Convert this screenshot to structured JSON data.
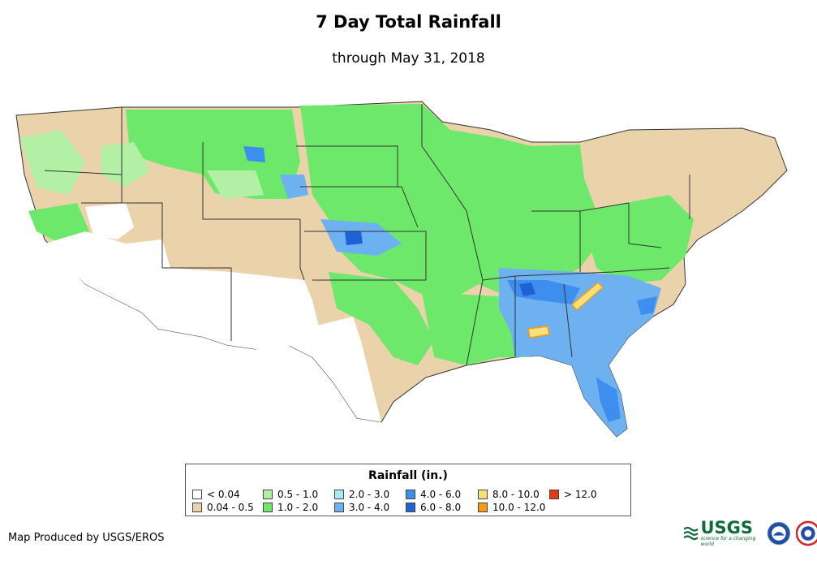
{
  "title": "7 Day Total Rainfall",
  "subtitle": "through May 31, 2018",
  "legend": {
    "title": "Rainfall (in.)",
    "items": [
      {
        "label": "< 0.04",
        "color": "#ffffff"
      },
      {
        "label": "0.04 - 0.5",
        "color": "#ead2aa"
      },
      {
        "label": "0.5 - 1.0",
        "color": "#b2f0a6"
      },
      {
        "label": "1.0 - 2.0",
        "color": "#6ee86a"
      },
      {
        "label": "2.0 - 3.0",
        "color": "#a9e8f5"
      },
      {
        "label": "3.0 - 4.0",
        "color": "#6eb1f0"
      },
      {
        "label": "4.0 - 6.0",
        "color": "#3d8eef"
      },
      {
        "label": "6.0 - 8.0",
        "color": "#1f62d8"
      },
      {
        "label": "8.0 - 10.0",
        "color": "#f7e27a"
      },
      {
        "label": "10.0 - 12.0",
        "color": "#f79a18"
      },
      {
        "label": "> 12.0",
        "color": "#e83a12"
      }
    ]
  },
  "credit": "Map Produced by USGS/EROS",
  "logos": {
    "usgs": "USGS",
    "usgs_tagline": "science for a changing world"
  }
}
